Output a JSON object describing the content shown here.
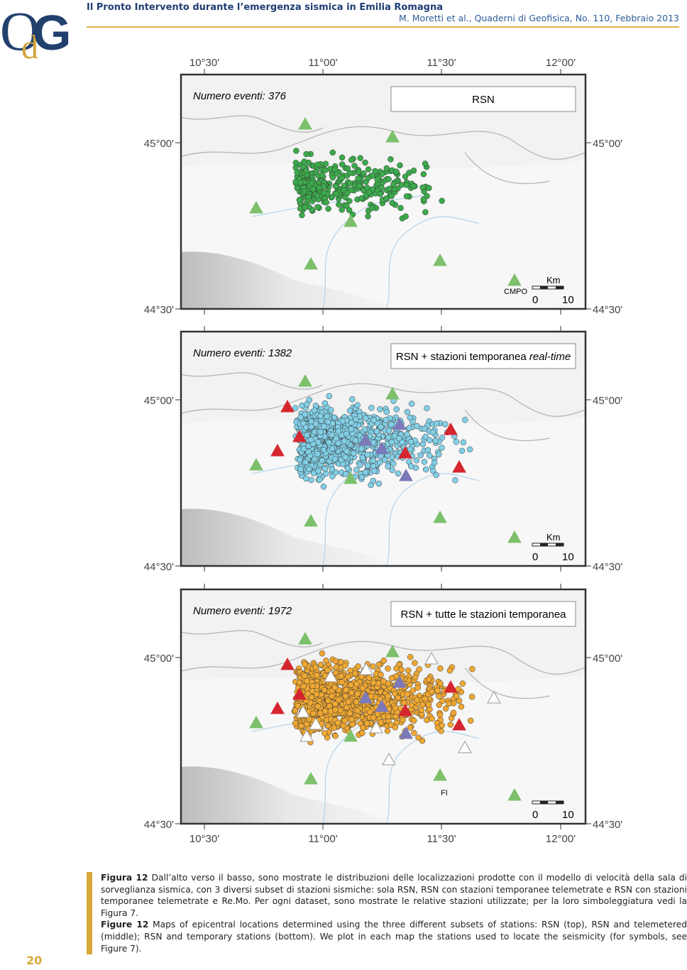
{
  "header": {
    "title": "Il Pronto Intervento durante l’emergenza sismica in Emilia Romagna",
    "citation": "M. Moretti et al., Quaderni di Geofisica, No. 110, Febbraio 2013"
  },
  "logo": {
    "first": "O",
    "middle": "d",
    "last": "G"
  },
  "figure": {
    "lon_labels": [
      "10°30'",
      "11°00'",
      "11°30'",
      "12°00'"
    ],
    "lat_labels": [
      "45°00'",
      "44°30'"
    ],
    "panels": [
      {
        "count_label": "Numero eventi: 376",
        "dataset_label": "RSN",
        "station_label": "CMPO",
        "scale_unit": "Km",
        "scale_ticks": [
          "0",
          "10"
        ]
      },
      {
        "count_label": "Numero eventi: 1382",
        "dataset_label": "RSN + stazioni temporanea ",
        "dataset_label_italic": "real-time",
        "scale_unit": "Km",
        "scale_ticks": [
          "0",
          "10"
        ]
      },
      {
        "count_label": "Numero eventi: 1972",
        "dataset_label": "RSN + tutte le stazioni temporanea",
        "station_label": "FI",
        "scale_ticks": [
          "0",
          "10"
        ]
      }
    ]
  },
  "caption": {
    "it_label": "Figura 12",
    "it_text": "Dall’alto verso il basso, sono mostrate le distribuzioni delle localizzazioni prodotte con il modello di velocità della sala di sorveglianza sismica, con 3 diversi subset di stazioni sismiche: sola RSN, RSN con stazioni temporanee telemetrate e RSN con stazioni temporanee telemetrate e Re.Mo. Per ogni dataset, sono mostrate le relative stazioni utilizzate; per la loro simboleggiatura vedi la Figura 7.",
    "en_label": "Figure 12",
    "en_text": "Maps of epicentral locations determined using the three different subsets of stations: RSN (top), RSN and telemetered (middle); RSN and temporary stations (bottom). We plot in each map the stations used to locate the seismicity (for symbols, see Figure 7)."
  },
  "page_number": "20"
}
